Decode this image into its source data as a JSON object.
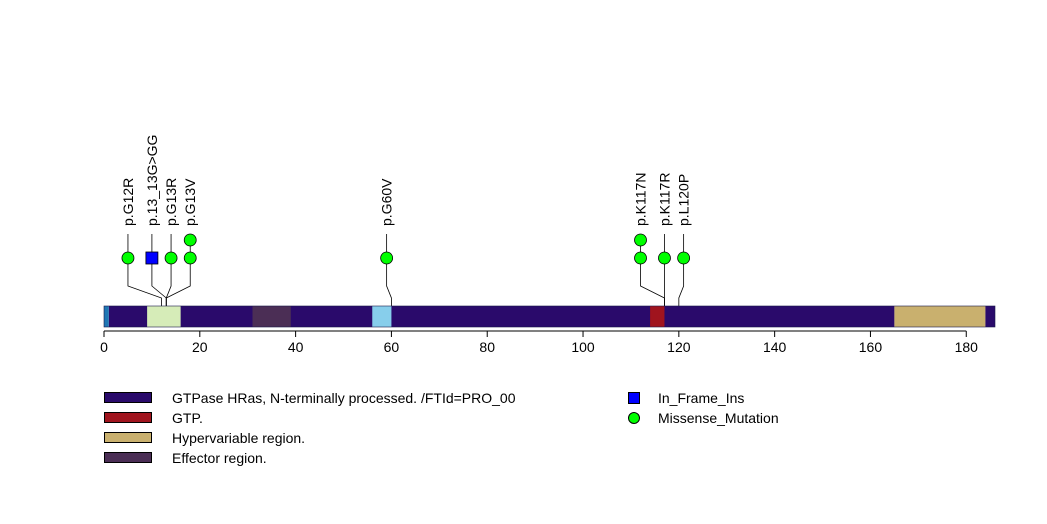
{
  "chart_data": {
    "type": "lollipop",
    "title": "",
    "protein_length": 186,
    "x_ticks": [
      0,
      20,
      40,
      60,
      80,
      100,
      120,
      140,
      160,
      180
    ],
    "domains": [
      {
        "name": "GTPase HRas, N-terminally processed. /FTId=PRO_00",
        "start": 1,
        "end": 165,
        "color": "#2a0a6b",
        "legend": true
      },
      {
        "name": "",
        "start": 0,
        "end": 1,
        "color": "#1f77b4",
        "legend": false
      },
      {
        "name": "",
        "start": 9,
        "end": 16,
        "color": "#d6ecb8",
        "legend": false
      },
      {
        "name": "Effector region.",
        "start": 31,
        "end": 39,
        "color": "#4b2e55",
        "legend": true
      },
      {
        "name": "",
        "start": 56,
        "end": 60,
        "color": "#87ceeb",
        "legend": false
      },
      {
        "name": "GTP.",
        "start": 114,
        "end": 117,
        "color": "#a0141e",
        "legend": true
      },
      {
        "name": "Hypervariable region.",
        "start": 165,
        "end": 184,
        "color": "#c9b06e",
        "legend": true
      },
      {
        "name": "",
        "start": 184,
        "end": 186,
        "color": "#2a0a6b",
        "legend": false
      }
    ],
    "legend_domain_order": [
      "GTPase HRas, N-terminally processed. /FTId=PRO_00",
      "GTP.",
      "Hypervariable region.",
      "Effector region."
    ],
    "mutations": [
      {
        "label": "p.G12R",
        "position": 12,
        "label_x": 5,
        "counts": [
          {
            "type": "Missense_Mutation",
            "n": 1
          }
        ]
      },
      {
        "label": "p.13_13G>GG",
        "position": 13,
        "label_x": 10,
        "counts": [
          {
            "type": "In_Frame_Ins",
            "n": 1
          }
        ]
      },
      {
        "label": "p.G13R",
        "position": 13,
        "label_x": 14,
        "counts": [
          {
            "type": "Missense_Mutation",
            "n": 1
          }
        ]
      },
      {
        "label": "p.G13V",
        "position": 13,
        "label_x": 18,
        "counts": [
          {
            "type": "Missense_Mutation",
            "n": 2
          }
        ]
      },
      {
        "label": "p.G60V",
        "position": 60,
        "label_x": 59,
        "counts": [
          {
            "type": "Missense_Mutation",
            "n": 1
          }
        ]
      },
      {
        "label": "p.K117N",
        "position": 117,
        "label_x": 112,
        "counts": [
          {
            "type": "Missense_Mutation",
            "n": 2
          }
        ]
      },
      {
        "label": "p.K117R",
        "position": 117,
        "label_x": 117,
        "counts": [
          {
            "type": "Missense_Mutation",
            "n": 1
          }
        ]
      },
      {
        "label": "p.L120P",
        "position": 120,
        "label_x": 121,
        "counts": [
          {
            "type": "Missense_Mutation",
            "n": 1
          }
        ]
      }
    ],
    "mutation_types": [
      {
        "name": "In_Frame_Ins",
        "color": "#0000ff",
        "shape": "square"
      },
      {
        "name": "Missense_Mutation",
        "color": "#00ff00",
        "shape": "circle"
      }
    ]
  }
}
